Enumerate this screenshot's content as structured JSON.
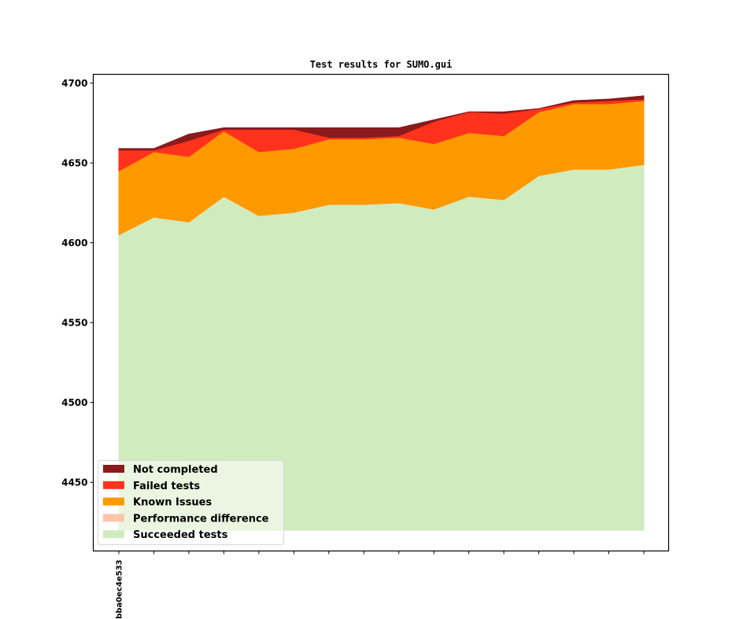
{
  "chart_data": {
    "type": "area",
    "stacked": true,
    "title": "Test results for SUMO.gui",
    "xlabel": "",
    "ylabel": "",
    "ylim": [
      4407,
      4705.5
    ],
    "baseline": 4420,
    "yticks": [
      4450,
      4500,
      4550,
      4600,
      4650,
      4700
    ],
    "ytick_labels": [
      "4450",
      "4500",
      "4550",
      "4600",
      "4650",
      "4700"
    ],
    "x_count": 16,
    "xtick_labels": [
      "bba0ec4e533",
      "",
      "",
      "",
      "",
      "",
      "",
      "",
      "",
      "",
      "",
      "",
      "",
      "",
      "",
      ""
    ],
    "grid": false,
    "legend_position": "lower-left",
    "series": [
      {
        "name": "Succeeded tests",
        "color": "#d0ecbf",
        "values": [
          4605,
          4616,
          4613,
          4629,
          4617,
          4619,
          4624,
          4624,
          4625,
          4621,
          4629,
          4627,
          4642,
          4646,
          4646,
          4649
        ]
      },
      {
        "name": "Performance difference",
        "color": "#ffc6aa",
        "values": [
          0,
          0,
          0,
          0,
          0,
          0,
          0,
          0,
          0,
          0,
          0,
          0,
          0,
          0,
          0,
          0
        ]
      },
      {
        "name": "Known Issues",
        "color": "#ff9900",
        "values": [
          40,
          41,
          41,
          41,
          40,
          40,
          41,
          41,
          41,
          41,
          40,
          40,
          40,
          41,
          41,
          40
        ]
      },
      {
        "name": "Failed tests",
        "color": "#ff331c",
        "values": [
          13,
          1,
          10,
          1,
          14,
          12,
          1,
          1,
          1,
          14,
          13,
          14,
          2,
          1,
          2,
          1
        ]
      },
      {
        "name": "Not completed",
        "color": "#8b1a1c",
        "values": [
          1,
          1,
          4,
          1,
          1,
          1,
          6,
          6,
          5,
          1,
          0,
          1,
          0,
          1,
          1,
          2
        ]
      }
    ],
    "legend_order": [
      "Not completed",
      "Failed tests",
      "Known Issues",
      "Performance difference",
      "Succeeded tests"
    ]
  }
}
